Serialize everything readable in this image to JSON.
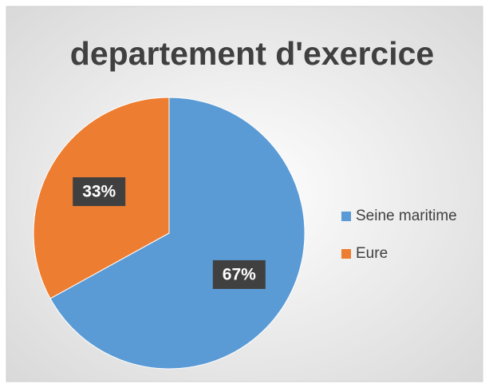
{
  "chart_data": {
    "type": "pie",
    "title": "departement d'exercice",
    "categories": [
      "Seine maritime",
      "Eure"
    ],
    "values": [
      67,
      33
    ],
    "value_labels": [
      "67%",
      "33%"
    ],
    "colors": [
      "#5b9bd5",
      "#ed7d31"
    ],
    "legend": "right"
  }
}
